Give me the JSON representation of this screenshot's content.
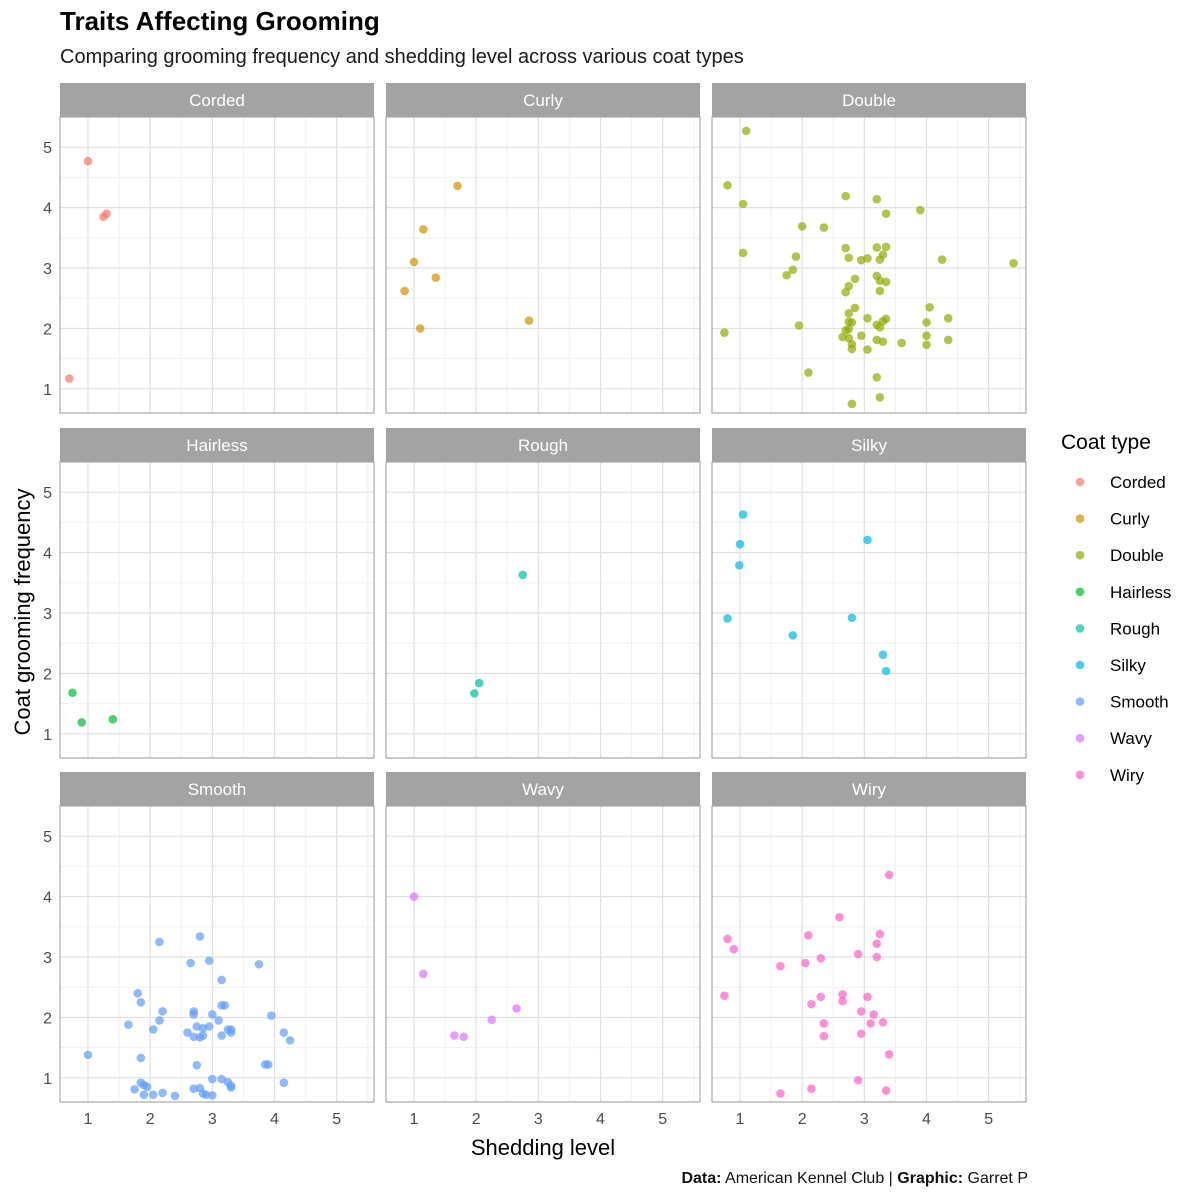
{
  "title": "Traits Affecting Grooming",
  "subtitle": "Comparing grooming frequency and shedding level across various coat types",
  "caption": {
    "data_label": "Data:",
    "data_value": "American Kennel Club",
    "separator": "|",
    "graphic_label": "Graphic:",
    "graphic_value": "Garret P"
  },
  "chart_data": {
    "type": "scatter",
    "faceted": true,
    "facet_columns": 3,
    "xlabel": "Shedding level",
    "ylabel": "Coat grooming frequency",
    "xlim": [
      0.55,
      5.6
    ],
    "ylim": [
      0.6,
      5.5
    ],
    "x_ticks": [
      1,
      2,
      3,
      4,
      5
    ],
    "y_ticks": [
      1,
      2,
      3,
      4,
      5
    ],
    "grid": true,
    "jittered": true,
    "point_alpha": 0.7,
    "legend_title": "Coat type",
    "legend_position": "right",
    "series": [
      {
        "name": "Corded",
        "color": "#F8766D",
        "points": [
          [
            1.0,
            4.77
          ],
          [
            1.25,
            3.85
          ],
          [
            1.3,
            3.9
          ],
          [
            0.7,
            1.17
          ]
        ]
      },
      {
        "name": "Curly",
        "color": "#D39200",
        "points": [
          [
            1.7,
            4.36
          ],
          [
            1.15,
            3.64
          ],
          [
            1.0,
            3.1
          ],
          [
            1.35,
            2.84
          ],
          [
            0.85,
            2.62
          ],
          [
            1.1,
            2.0
          ],
          [
            2.85,
            2.13
          ]
        ]
      },
      {
        "name": "Double",
        "color": "#93AA00",
        "points": [
          [
            1.1,
            5.27
          ],
          [
            0.8,
            4.37
          ],
          [
            1.05,
            4.06
          ],
          [
            1.05,
            3.25
          ],
          [
            2.7,
            4.19
          ],
          [
            3.2,
            4.14
          ],
          [
            3.9,
            3.96
          ],
          [
            3.35,
            3.9
          ],
          [
            2.0,
            3.69
          ],
          [
            2.35,
            3.67
          ],
          [
            1.9,
            3.19
          ],
          [
            1.85,
            2.97
          ],
          [
            1.75,
            2.88
          ],
          [
            2.7,
            3.33
          ],
          [
            3.2,
            3.34
          ],
          [
            3.35,
            3.35
          ],
          [
            3.3,
            3.22
          ],
          [
            2.75,
            3.17
          ],
          [
            2.95,
            3.13
          ],
          [
            3.05,
            3.16
          ],
          [
            3.25,
            3.14
          ],
          [
            3.2,
            2.87
          ],
          [
            3.25,
            2.79
          ],
          [
            3.35,
            2.77
          ],
          [
            2.85,
            2.82
          ],
          [
            2.75,
            2.7
          ],
          [
            2.7,
            2.6
          ],
          [
            3.25,
            2.62
          ],
          [
            3.2,
            2.06
          ],
          [
            3.25,
            2.02
          ],
          [
            2.75,
            2.25
          ],
          [
            2.85,
            2.34
          ],
          [
            2.75,
            2.11
          ],
          [
            2.75,
            1.99
          ],
          [
            2.7,
            1.97
          ],
          [
            2.8,
            2.1
          ],
          [
            2.65,
            1.86
          ],
          [
            2.75,
            1.84
          ],
          [
            2.95,
            1.88
          ],
          [
            3.05,
            2.17
          ],
          [
            3.3,
            2.12
          ],
          [
            3.35,
            2.16
          ],
          [
            3.2,
            1.81
          ],
          [
            3.3,
            1.78
          ],
          [
            3.05,
            1.65
          ],
          [
            2.8,
            1.66
          ],
          [
            2.8,
            1.74
          ],
          [
            3.6,
            1.76
          ],
          [
            4.0,
            1.88
          ],
          [
            4.0,
            1.73
          ],
          [
            4.05,
            2.35
          ],
          [
            4.0,
            2.1
          ],
          [
            4.35,
            2.17
          ],
          [
            4.35,
            1.81
          ],
          [
            4.25,
            3.14
          ],
          [
            5.4,
            3.08
          ],
          [
            0.75,
            1.93
          ],
          [
            1.95,
            2.05
          ],
          [
            2.1,
            1.27
          ],
          [
            3.2,
            1.19
          ],
          [
            3.25,
            0.86
          ],
          [
            2.8,
            0.75
          ]
        ]
      },
      {
        "name": "Hairless",
        "color": "#00BA38",
        "points": [
          [
            0.75,
            1.68
          ],
          [
            0.9,
            1.19
          ],
          [
            1.4,
            1.24
          ]
        ]
      },
      {
        "name": "Rough",
        "color": "#00C19F",
        "points": [
          [
            2.75,
            3.63
          ],
          [
            2.05,
            1.84
          ],
          [
            1.97,
            1.67
          ]
        ]
      },
      {
        "name": "Silky",
        "color": "#00B9E3",
        "points": [
          [
            1.05,
            4.63
          ],
          [
            1.0,
            4.14
          ],
          [
            0.99,
            3.79
          ],
          [
            0.8,
            2.91
          ],
          [
            3.05,
            4.21
          ],
          [
            2.8,
            2.92
          ],
          [
            1.85,
            2.63
          ],
          [
            3.3,
            2.31
          ],
          [
            3.35,
            2.04
          ]
        ]
      },
      {
        "name": "Smooth",
        "color": "#619CFF",
        "points": [
          [
            2.15,
            3.25
          ],
          [
            2.8,
            3.34
          ],
          [
            2.65,
            2.9
          ],
          [
            2.95,
            2.94
          ],
          [
            3.75,
            2.88
          ],
          [
            3.15,
            2.62
          ],
          [
            1.8,
            2.4
          ],
          [
            1.85,
            2.25
          ],
          [
            2.2,
            2.1
          ],
          [
            2.15,
            1.95
          ],
          [
            2.05,
            1.8
          ],
          [
            1.65,
            1.88
          ],
          [
            2.7,
            2.1
          ],
          [
            2.7,
            2.05
          ],
          [
            3.15,
            2.2
          ],
          [
            3.2,
            2.2
          ],
          [
            3.0,
            2.05
          ],
          [
            3.1,
            1.95
          ],
          [
            2.95,
            1.85
          ],
          [
            2.85,
            1.82
          ],
          [
            2.75,
            1.85
          ],
          [
            2.6,
            1.75
          ],
          [
            2.7,
            1.68
          ],
          [
            2.8,
            1.67
          ],
          [
            2.85,
            1.7
          ],
          [
            3.15,
            1.7
          ],
          [
            3.25,
            1.8
          ],
          [
            3.3,
            1.8
          ],
          [
            3.3,
            1.75
          ],
          [
            3.95,
            2.03
          ],
          [
            4.15,
            1.75
          ],
          [
            4.25,
            1.62
          ],
          [
            1.0,
            1.38
          ],
          [
            1.85,
            1.33
          ],
          [
            2.75,
            1.21
          ],
          [
            3.15,
            0.98
          ],
          [
            3.0,
            0.98
          ],
          [
            3.25,
            0.93
          ],
          [
            3.3,
            0.87
          ],
          [
            3.3,
            0.84
          ],
          [
            3.85,
            1.22
          ],
          [
            3.9,
            1.22
          ],
          [
            4.15,
            0.92
          ],
          [
            1.85,
            0.92
          ],
          [
            1.9,
            0.88
          ],
          [
            1.95,
            0.85
          ],
          [
            1.75,
            0.81
          ],
          [
            2.05,
            0.72
          ],
          [
            2.2,
            0.75
          ],
          [
            1.9,
            0.72
          ],
          [
            2.4,
            0.7
          ],
          [
            2.7,
            0.82
          ],
          [
            2.8,
            0.83
          ],
          [
            2.85,
            0.74
          ],
          [
            3.0,
            0.71
          ],
          [
            2.9,
            0.72
          ]
        ]
      },
      {
        "name": "Wavy",
        "color": "#DB72FB",
        "points": [
          [
            1.0,
            4.0
          ],
          [
            1.15,
            2.72
          ],
          [
            1.65,
            1.7
          ],
          [
            1.8,
            1.68
          ],
          [
            2.25,
            1.96
          ],
          [
            2.65,
            2.15
          ]
        ]
      },
      {
        "name": "Wiry",
        "color": "#FF61C3",
        "points": [
          [
            3.4,
            4.36
          ],
          [
            0.8,
            3.3
          ],
          [
            0.9,
            3.13
          ],
          [
            2.1,
            3.36
          ],
          [
            2.6,
            3.66
          ],
          [
            1.65,
            2.85
          ],
          [
            2.05,
            2.9
          ],
          [
            2.3,
            2.98
          ],
          [
            2.9,
            3.05
          ],
          [
            3.25,
            3.38
          ],
          [
            3.2,
            3.22
          ],
          [
            3.2,
            3.0
          ],
          [
            0.75,
            2.36
          ],
          [
            2.3,
            2.34
          ],
          [
            2.65,
            2.38
          ],
          [
            2.65,
            2.27
          ],
          [
            2.15,
            2.22
          ],
          [
            3.05,
            2.34
          ],
          [
            2.95,
            2.1
          ],
          [
            3.15,
            2.05
          ],
          [
            3.1,
            1.9
          ],
          [
            3.3,
            1.92
          ],
          [
            2.35,
            1.9
          ],
          [
            2.35,
            1.69
          ],
          [
            2.95,
            1.73
          ],
          [
            3.4,
            1.39
          ],
          [
            2.9,
            0.96
          ],
          [
            2.15,
            0.82
          ],
          [
            1.65,
            0.74
          ],
          [
            3.35,
            0.79
          ]
        ]
      }
    ]
  }
}
